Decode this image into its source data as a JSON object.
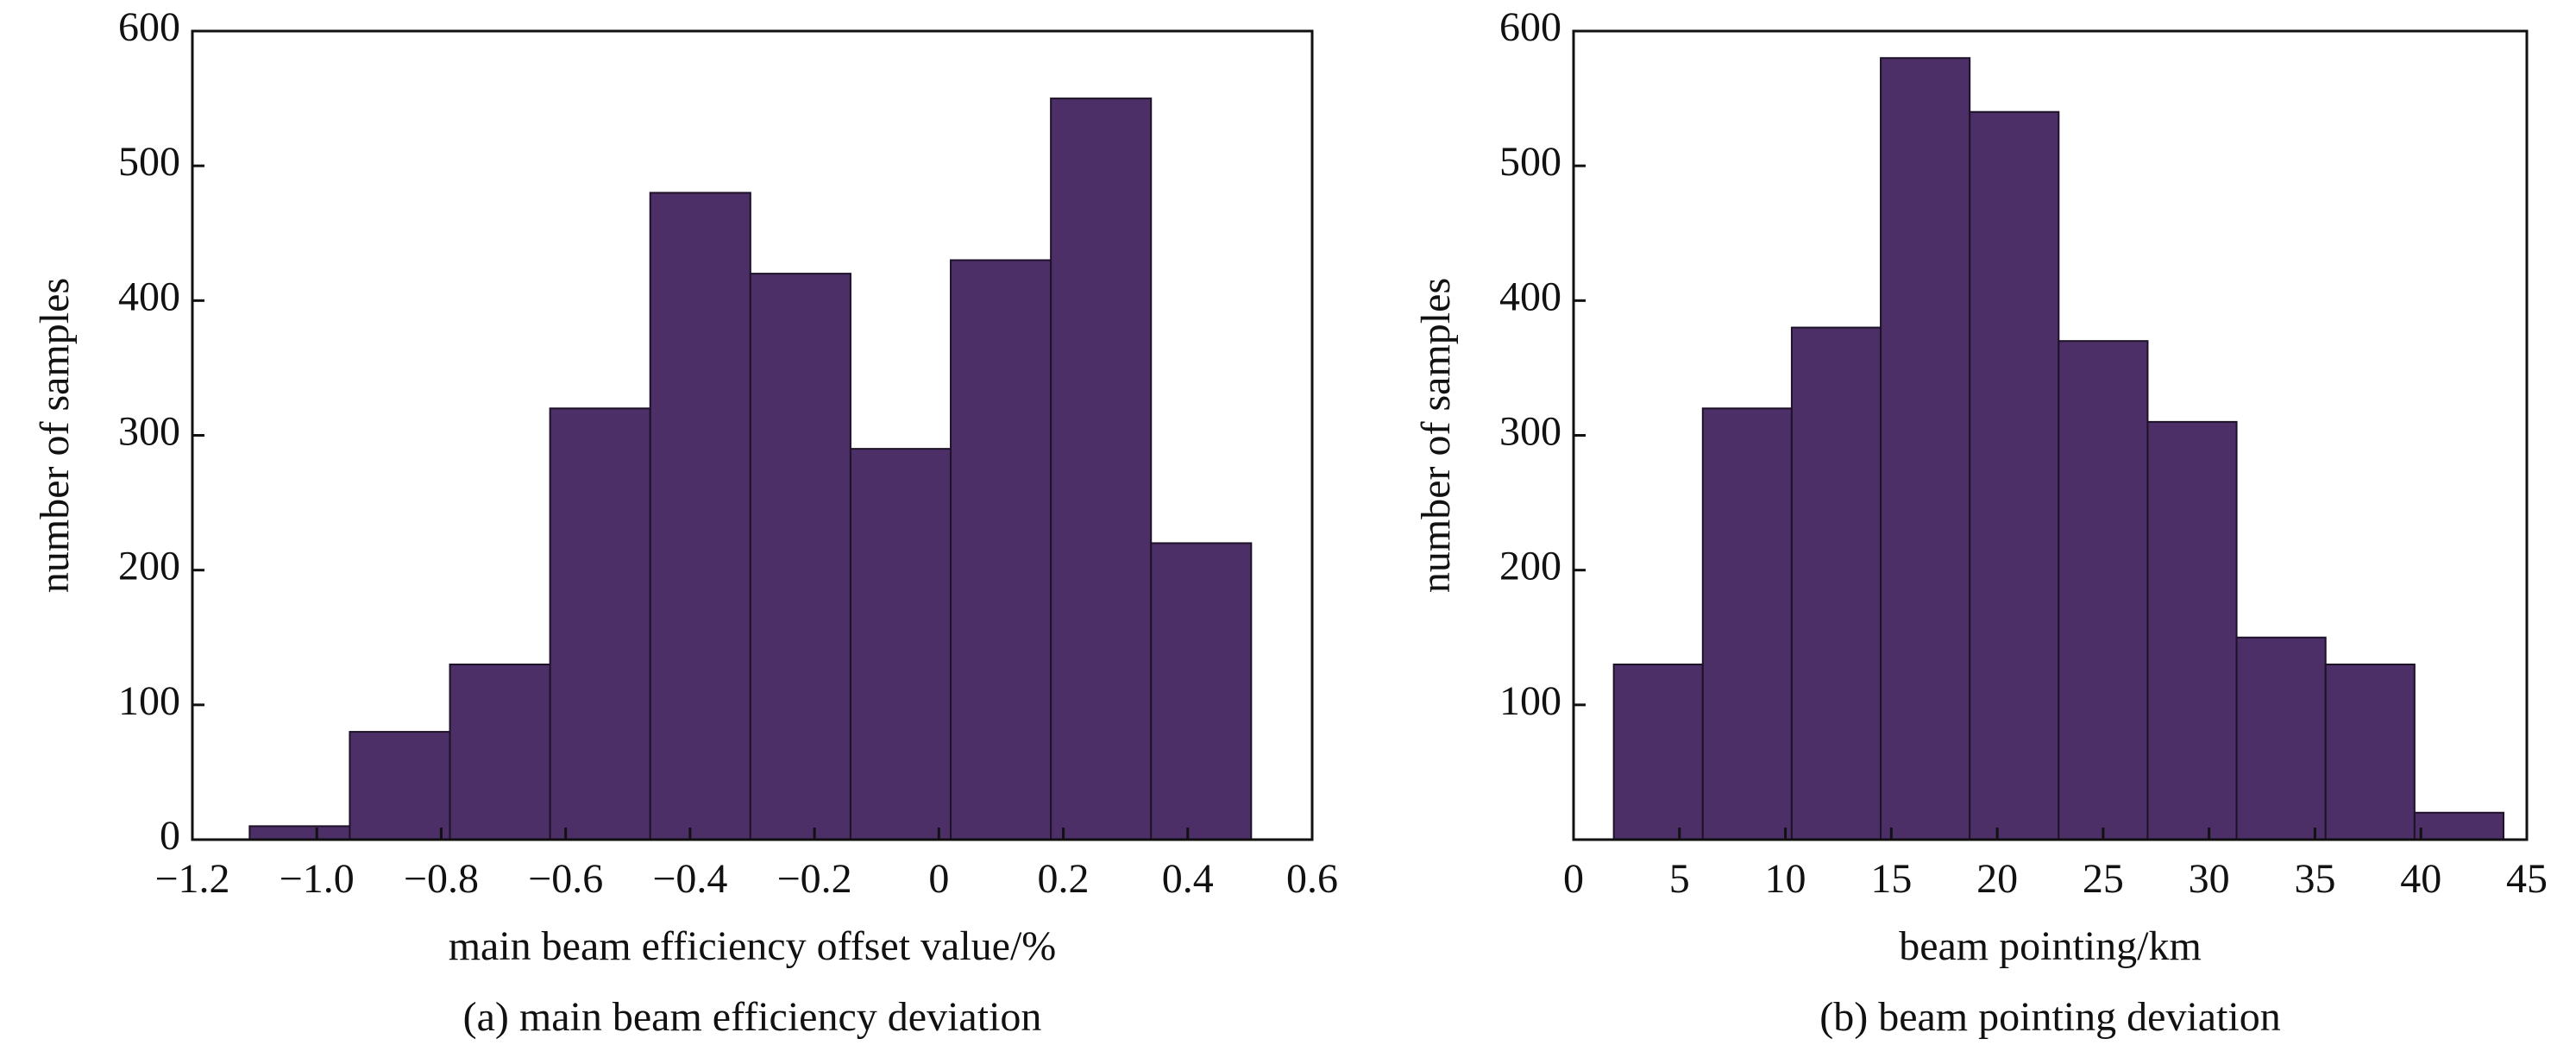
{
  "chart_data": [
    {
      "type": "histogram",
      "xlabel": "main beam efficiency offset value/%",
      "ylabel": "number of samples",
      "caption": "(a)  main beam efficiency deviation",
      "bins": [
        -1.108,
        -0.947,
        -0.786,
        -0.625,
        -0.464,
        -0.303,
        -0.142,
        0.019,
        0.18,
        0.341,
        0.502
      ],
      "values": [
        10,
        80,
        130,
        320,
        480,
        420,
        290,
        430,
        550,
        220
      ],
      "color": "#4b2f66",
      "xlim": [
        -1.2,
        0.6
      ],
      "xticks": [
        {
          "value": -1.2,
          "label": "−1.2"
        },
        {
          "value": -1.0,
          "label": "−1.0"
        },
        {
          "value": -0.8,
          "label": "−0.8"
        },
        {
          "value": -0.6,
          "label": "−0.6"
        },
        {
          "value": -0.4,
          "label": "−0.4"
        },
        {
          "value": -0.2,
          "label": "−0.2"
        },
        0,
        0.2,
        0.4,
        0.6
      ],
      "ylim": [
        0,
        600
      ],
      "yticks": [
        0,
        100,
        200,
        300,
        400,
        500,
        600
      ]
    },
    {
      "type": "histogram",
      "xlabel": "beam pointing/km",
      "ylabel": "number of samples",
      "caption": "(b)  beam pointing deviation",
      "bins": [
        1.9,
        6.1,
        10.3,
        14.5,
        18.7,
        22.9,
        27.1,
        31.3,
        35.5,
        39.7,
        43.9
      ],
      "values": [
        130,
        320,
        380,
        580,
        540,
        370,
        310,
        150,
        130,
        20
      ],
      "color": "#4b2f66",
      "xlim": [
        0,
        45
      ],
      "xticks": [
        0,
        5,
        10,
        15,
        20,
        25,
        30,
        35,
        40,
        45
      ],
      "ylim": [
        0,
        600
      ],
      "yticks": [
        100,
        200,
        300,
        400,
        500,
        600
      ]
    }
  ]
}
